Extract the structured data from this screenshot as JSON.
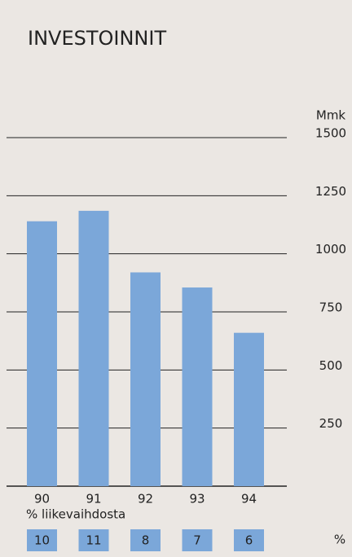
{
  "chart_data": {
    "type": "bar",
    "title": "INVESTOINNIT",
    "y_label": "Mmk",
    "categories": [
      "90",
      "91",
      "92",
      "93",
      "94"
    ],
    "values": [
      1140,
      1185,
      920,
      855,
      660
    ],
    "color": "#7ba7d9",
    "ylim": [
      0,
      1500
    ],
    "yticks": [
      250,
      500,
      750,
      1000,
      1250,
      1500
    ],
    "grid": true,
    "percent_label": "% liikevaihdosta",
    "percent_unit": "%",
    "percent_values": [
      10,
      11,
      8,
      7,
      6
    ]
  }
}
